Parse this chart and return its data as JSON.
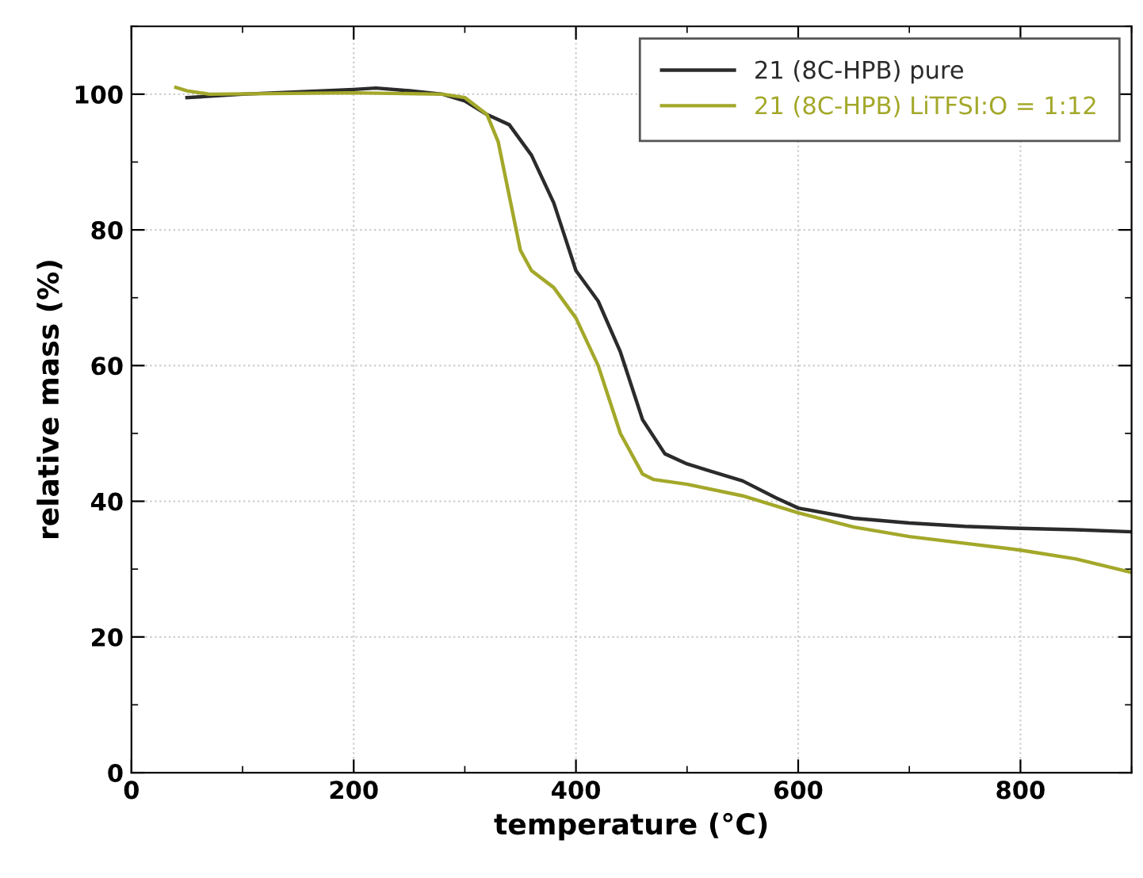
{
  "chart_data": {
    "type": "line",
    "xlabel": "temperature (°C)",
    "ylabel": "relative mass (%)",
    "xlim": [
      0,
      900
    ],
    "ylim": [
      0,
      110
    ],
    "xticks": [
      0,
      200,
      400,
      600,
      800
    ],
    "yticks": [
      0,
      20,
      40,
      60,
      80,
      100
    ],
    "grid": true,
    "legend": "top right",
    "line_style": "solid",
    "marker": "none",
    "series": [
      {
        "name": "21 (8C-HPB) pure",
        "color": "#2b2b2b",
        "x": [
          50,
          100,
          200,
          220,
          250,
          280,
          300,
          320,
          340,
          360,
          380,
          390,
          400,
          420,
          440,
          460,
          480,
          500,
          520,
          550,
          580,
          600,
          650,
          700,
          750,
          800,
          850,
          900
        ],
        "values": [
          99.5,
          100,
          100.7,
          100.9,
          100.5,
          100,
          99,
          97,
          95.5,
          91,
          84,
          79,
          74,
          69.5,
          62,
          52,
          47,
          45.5,
          44.5,
          43,
          40.5,
          39,
          37.5,
          36.8,
          36.3,
          36,
          35.8,
          35.5
        ]
      },
      {
        "name": "21 (8C-HPB) LiTFSI:O = 1:12",
        "color": "#a3a82a",
        "x": [
          40,
          50,
          70,
          200,
          280,
          300,
          320,
          330,
          340,
          350,
          360,
          380,
          400,
          420,
          440,
          460,
          470,
          500,
          550,
          600,
          650,
          700,
          750,
          800,
          850,
          900
        ],
        "values": [
          101,
          100.5,
          100,
          100.2,
          100,
          99.5,
          97,
          93,
          85,
          77,
          74,
          71.5,
          67,
          60,
          50,
          44,
          43.2,
          42.5,
          40.8,
          38.3,
          36.2,
          34.8,
          33.8,
          32.8,
          31.5,
          29.5
        ]
      }
    ]
  }
}
